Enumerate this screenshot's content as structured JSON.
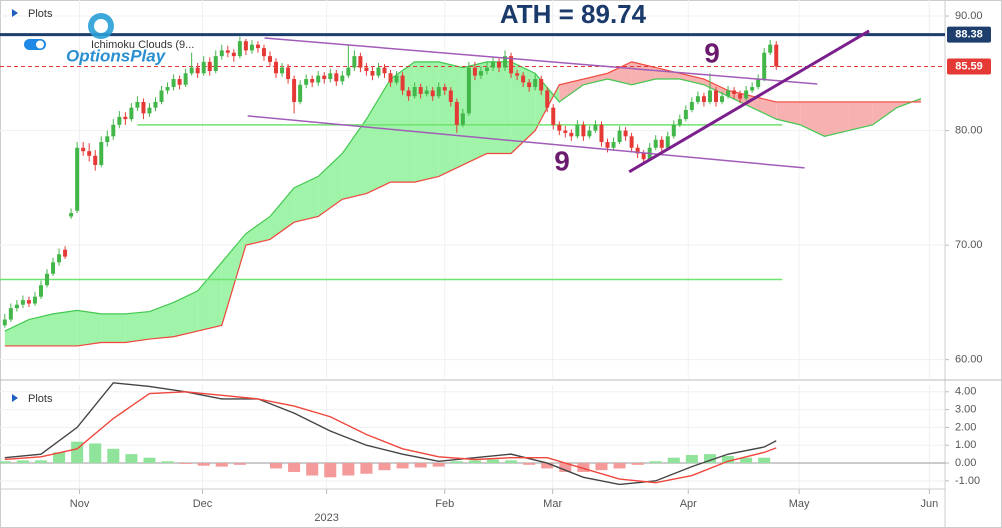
{
  "logo": "OptionsPlay",
  "chart_data": [
    {
      "type": "candlestick",
      "title": "ATH = 89.74",
      "legend_label": "Plots",
      "indicator_label": "Ichimoku Clouds (9...",
      "annotations": [
        "9",
        "9"
      ],
      "xlim": [
        -0.8,
        156
      ],
      "ylim": [
        58.4,
        91.4
      ],
      "yticks": [
        {
          "value": 60,
          "label": "60.00"
        },
        {
          "value": 70,
          "label": "70.00"
        },
        {
          "value": 80,
          "label": "80.00"
        },
        {
          "value": 90,
          "label": "90.00"
        }
      ],
      "grid": true,
      "up_color": "#43b649",
      "down_color": "#e53935",
      "candles": [
        [
          63.0,
          64.0,
          62.8,
          63.5
        ],
        [
          63.5,
          64.9,
          63.3,
          64.5
        ],
        [
          64.5,
          65.2,
          64.2,
          64.8
        ],
        [
          64.8,
          65.6,
          64.5,
          65.2
        ],
        [
          65.2,
          65.5,
          64.6,
          64.9
        ],
        [
          64.9,
          65.9,
          64.7,
          65.5
        ],
        [
          65.5,
          66.9,
          65.3,
          66.5
        ],
        [
          66.5,
          67.9,
          66.3,
          67.5
        ],
        [
          67.5,
          68.9,
          67.3,
          68.5
        ],
        [
          68.5,
          69.7,
          68.2,
          69.2
        ],
        [
          69.6,
          69.9,
          68.8,
          69.0
        ],
        [
          72.5,
          73.2,
          72.3,
          72.8
        ],
        [
          73.0,
          79.0,
          72.8,
          78.5
        ],
        [
          78.5,
          79.0,
          77.8,
          78.2
        ],
        [
          78.2,
          78.9,
          77.3,
          77.8
        ],
        [
          77.8,
          78.3,
          76.5,
          77.0
        ],
        [
          77.0,
          79.5,
          76.8,
          79.0
        ],
        [
          79.0,
          80.0,
          78.6,
          79.5
        ],
        [
          79.5,
          81.0,
          79.2,
          80.5
        ],
        [
          80.5,
          81.7,
          80.2,
          81.2
        ],
        [
          81.2,
          81.6,
          80.5,
          81.0
        ],
        [
          81.0,
          82.4,
          80.8,
          82.0
        ],
        [
          82.0,
          83.0,
          81.7,
          82.5
        ],
        [
          82.5,
          82.8,
          81.0,
          81.5
        ],
        [
          81.5,
          82.4,
          81.2,
          82.0
        ],
        [
          82.0,
          82.9,
          81.7,
          82.5
        ],
        [
          82.5,
          83.9,
          82.3,
          83.5
        ],
        [
          83.5,
          84.2,
          83.2,
          83.8
        ],
        [
          83.8,
          84.9,
          83.5,
          84.5
        ],
        [
          84.5,
          84.8,
          83.6,
          84.0
        ],
        [
          84.0,
          85.4,
          83.8,
          85.0
        ],
        [
          85.0,
          86.8,
          84.8,
          85.5
        ],
        [
          85.5,
          85.9,
          84.6,
          85.0
        ],
        [
          85.0,
          86.5,
          84.8,
          86.0
        ],
        [
          86.0,
          86.4,
          84.8,
          85.2
        ],
        [
          85.2,
          87.0,
          85.0,
          86.5
        ],
        [
          86.5,
          87.5,
          86.2,
          87.0
        ],
        [
          87.0,
          87.4,
          86.4,
          86.8
        ],
        [
          86.8,
          87.1,
          86.0,
          86.5
        ],
        [
          86.5,
          88.2,
          86.3,
          87.8
        ],
        [
          87.8,
          88.0,
          86.6,
          87.0
        ],
        [
          87.0,
          87.9,
          86.7,
          87.5
        ],
        [
          87.5,
          87.8,
          86.8,
          87.2
        ],
        [
          87.2,
          87.5,
          86.1,
          86.5
        ],
        [
          86.5,
          86.9,
          85.6,
          86.0
        ],
        [
          86.0,
          86.3,
          84.6,
          85.0
        ],
        [
          85.0,
          85.9,
          84.7,
          85.5
        ],
        [
          85.5,
          85.8,
          84.1,
          84.5
        ],
        [
          84.5,
          84.8,
          81.5,
          82.5
        ],
        [
          82.5,
          84.4,
          82.3,
          84.0
        ],
        [
          84.0,
          84.9,
          83.7,
          84.5
        ],
        [
          84.5,
          84.8,
          83.8,
          84.2
        ],
        [
          84.2,
          85.2,
          83.9,
          84.8
        ],
        [
          84.8,
          85.1,
          84.1,
          84.5
        ],
        [
          84.5,
          85.4,
          84.2,
          85.0
        ],
        [
          85.0,
          85.3,
          83.9,
          84.3
        ],
        [
          84.3,
          85.2,
          84.0,
          84.8
        ],
        [
          84.8,
          87.5,
          84.6,
          85.5
        ],
        [
          85.5,
          87.0,
          85.2,
          86.5
        ],
        [
          86.5,
          86.8,
          85.1,
          85.5
        ],
        [
          85.5,
          85.9,
          84.8,
          85.2
        ],
        [
          85.2,
          85.6,
          84.4,
          84.8
        ],
        [
          84.8,
          85.9,
          84.6,
          85.5
        ],
        [
          85.5,
          85.8,
          84.6,
          85.0
        ],
        [
          85.0,
          85.3,
          83.8,
          84.2
        ],
        [
          84.2,
          85.2,
          84.0,
          84.8
        ],
        [
          84.8,
          85.1,
          83.1,
          83.5
        ],
        [
          83.5,
          83.8,
          82.6,
          83.0
        ],
        [
          83.0,
          84.2,
          82.8,
          83.8
        ],
        [
          83.8,
          84.1,
          82.8,
          83.2
        ],
        [
          83.2,
          83.9,
          83.0,
          83.5
        ],
        [
          83.5,
          83.8,
          82.6,
          83.0
        ],
        [
          83.0,
          84.2,
          82.8,
          83.8
        ],
        [
          83.8,
          84.1,
          83.1,
          83.5
        ],
        [
          83.5,
          83.8,
          82.1,
          82.5
        ],
        [
          82.5,
          82.8,
          79.8,
          80.5
        ],
        [
          80.5,
          81.9,
          80.3,
          81.5
        ],
        [
          81.5,
          86.0,
          81.3,
          85.5
        ],
        [
          85.5,
          86.0,
          84.4,
          84.8
        ],
        [
          84.8,
          85.6,
          84.5,
          85.2
        ],
        [
          85.2,
          86.0,
          84.9,
          85.5
        ],
        [
          85.5,
          86.4,
          85.2,
          86.0
        ],
        [
          86.0,
          86.3,
          85.1,
          85.5
        ],
        [
          85.5,
          87.0,
          85.2,
          86.5
        ],
        [
          86.5,
          86.8,
          84.6,
          85.0
        ],
        [
          85.0,
          85.3,
          84.4,
          84.8
        ],
        [
          84.8,
          85.1,
          83.8,
          84.2
        ],
        [
          84.2,
          84.5,
          83.4,
          83.8
        ],
        [
          83.8,
          84.9,
          83.5,
          84.5
        ],
        [
          84.5,
          84.8,
          83.1,
          83.5
        ],
        [
          83.5,
          83.8,
          81.6,
          82.0
        ],
        [
          82.0,
          82.3,
          80.1,
          80.5
        ],
        [
          80.5,
          80.8,
          79.6,
          80.0
        ],
        [
          80.0,
          80.4,
          79.4,
          79.8
        ],
        [
          79.8,
          80.1,
          79.1,
          79.5
        ],
        [
          79.5,
          80.9,
          79.3,
          80.5
        ],
        [
          80.5,
          80.8,
          79.1,
          79.5
        ],
        [
          79.5,
          80.4,
          79.3,
          80.0
        ],
        [
          80.0,
          80.9,
          79.8,
          80.5
        ],
        [
          80.5,
          80.8,
          78.6,
          79.0
        ],
        [
          79.0,
          79.3,
          78.1,
          78.5
        ],
        [
          78.5,
          79.4,
          78.3,
          79.0
        ],
        [
          79.0,
          80.4,
          78.8,
          80.0
        ],
        [
          80.0,
          80.3,
          79.1,
          79.5
        ],
        [
          79.5,
          79.8,
          78.1,
          78.5
        ],
        [
          78.5,
          78.8,
          77.6,
          78.0
        ],
        [
          78.0,
          78.3,
          77.1,
          77.5
        ],
        [
          77.5,
          78.9,
          77.3,
          78.5
        ],
        [
          78.5,
          79.6,
          78.3,
          79.2
        ],
        [
          79.2,
          79.5,
          78.1,
          78.5
        ],
        [
          78.5,
          79.9,
          78.3,
          79.5
        ],
        [
          79.5,
          80.9,
          79.3,
          80.5
        ],
        [
          80.5,
          81.4,
          80.3,
          81.0
        ],
        [
          81.0,
          82.2,
          80.8,
          81.8
        ],
        [
          81.8,
          82.9,
          81.6,
          82.5
        ],
        [
          82.5,
          83.4,
          82.3,
          83.0
        ],
        [
          83.0,
          83.3,
          82.1,
          82.5
        ],
        [
          82.5,
          85.0,
          82.3,
          83.5
        ],
        [
          83.5,
          83.8,
          82.1,
          82.5
        ],
        [
          82.5,
          83.4,
          82.3,
          83.0
        ],
        [
          83.0,
          83.9,
          82.8,
          83.5
        ],
        [
          83.5,
          83.8,
          82.8,
          83.2
        ],
        [
          83.2,
          83.5,
          82.4,
          82.8
        ],
        [
          82.8,
          83.9,
          82.6,
          83.5
        ],
        [
          83.5,
          84.2,
          83.3,
          83.8
        ],
        [
          83.8,
          84.9,
          83.6,
          84.5
        ],
        [
          84.5,
          87.2,
          84.3,
          86.8
        ],
        [
          86.8,
          87.9,
          86.6,
          87.5
        ],
        [
          87.5,
          87.8,
          85.3,
          85.6
        ]
      ],
      "ichimoku": {
        "x": [
          0,
          4,
          8,
          12,
          16,
          20,
          24,
          28,
          32,
          36,
          40,
          44,
          48,
          52,
          56,
          60,
          64,
          68,
          72,
          76,
          80,
          84,
          88,
          92,
          96,
          100,
          104,
          108,
          112,
          116,
          120,
          124,
          128,
          132,
          136,
          140,
          144,
          148,
          152
        ],
        "span_a": [
          62.5,
          63.5,
          64.0,
          64.3,
          64.0,
          64.0,
          64.2,
          65.0,
          66.0,
          68.5,
          71.0,
          72.5,
          75.0,
          76.0,
          78.0,
          81.0,
          84.5,
          86.0,
          86.0,
          85.5,
          86.0,
          86.0,
          85.0,
          82.5,
          84.0,
          84.5,
          84.0,
          84.5,
          84.5,
          84.0,
          83.0,
          82.0,
          81.0,
          80.5,
          79.5,
          80.0,
          80.5,
          82.0,
          82.8
        ],
        "span_b": [
          61.2,
          61.2,
          61.2,
          61.2,
          61.5,
          61.5,
          61.8,
          62.0,
          62.5,
          63.0,
          70.0,
          70.5,
          72.0,
          72.5,
          74.0,
          74.5,
          75.5,
          75.5,
          76.0,
          77.0,
          78.0,
          78.0,
          80.0,
          84.0,
          84.5,
          85.0,
          86.0,
          85.5,
          85.0,
          84.5,
          83.5,
          83.0,
          82.5,
          82.5,
          82.5,
          82.5,
          82.5,
          82.5,
          82.5
        ],
        "color_a": "#43c84f",
        "color_b": "#f0463c",
        "fill_up": "#8ef29a",
        "fill_down": "#f7a3a3"
      },
      "levels": [
        {
          "value": 80.5,
          "x": [
            22,
            129
          ],
          "color": "#6fe36f"
        },
        {
          "value": 67.0,
          "x": [
            -0.8,
            129
          ],
          "color": "#6fe36f"
        }
      ],
      "trendlines": [
        {
          "x": [
            43.1,
            134.8
          ],
          "y": [
            88.08,
            84.07
          ],
          "color": "#a05cb8"
        },
        {
          "x": [
            40.3,
            132.7
          ],
          "y": [
            81.28,
            76.74
          ],
          "color": "#a05cb8"
        },
        {
          "x": [
            103.6,
            143.4
          ],
          "y": [
            76.4,
            88.7
          ],
          "color": "#7b1f8c"
        }
      ],
      "price_tags": [
        {
          "value": 88.38,
          "color": "#1e3f6e",
          "style": "solid"
        },
        {
          "value": 85.59,
          "color": "#e53935",
          "style": "dashed"
        }
      ]
    },
    {
      "type": "macd",
      "legend_label": "Plots",
      "xlim": [
        -0.8,
        156
      ],
      "ylim": [
        -1.4,
        4.38
      ],
      "yticks": [
        {
          "value": -1,
          "label": "-1.00"
        },
        {
          "value": 0,
          "label": "0.00"
        },
        {
          "value": 1,
          "label": "1.00"
        },
        {
          "value": 2,
          "label": "2.00"
        },
        {
          "value": 3,
          "label": "3.00"
        },
        {
          "value": 4,
          "label": "4.00"
        }
      ],
      "xticks": [
        {
          "value": 12.4,
          "label": "Nov"
        },
        {
          "value": 32.8,
          "label": "Dec"
        },
        {
          "value": 53.4,
          "label": "2023"
        },
        {
          "value": 73,
          "label": "Feb"
        },
        {
          "value": 90.9,
          "label": "Mar"
        },
        {
          "value": 113.4,
          "label": "Apr"
        },
        {
          "value": 131.8,
          "label": "May"
        },
        {
          "value": 153.4,
          "label": "Jun"
        }
      ],
      "x": [
        0,
        6,
        12,
        18,
        24,
        30,
        36,
        42,
        48,
        54,
        60,
        66,
        72,
        78,
        84,
        90,
        96,
        102,
        108,
        114,
        120,
        126,
        128
      ],
      "series": [
        {
          "name": "MACD",
          "color": "#444444",
          "values": [
            0.3,
            0.5,
            2.0,
            4.5,
            4.3,
            4.0,
            3.6,
            3.6,
            2.8,
            1.8,
            1.0,
            0.5,
            0.1,
            0.3,
            0.5,
            0.0,
            -0.8,
            -1.2,
            -1.0,
            -0.2,
            0.5,
            0.9,
            1.25
          ]
        },
        {
          "name": "Signal",
          "color": "#f0463c",
          "values": [
            0.2,
            0.35,
            0.8,
            2.5,
            3.9,
            4.0,
            3.8,
            3.6,
            3.2,
            2.6,
            1.6,
            0.8,
            0.35,
            0.2,
            0.3,
            0.3,
            -0.3,
            -0.9,
            -1.1,
            -0.7,
            0.1,
            0.6,
            0.85
          ]
        }
      ],
      "hist_x": [
        0,
        3,
        6,
        9,
        12,
        15,
        18,
        21,
        24,
        27,
        30,
        33,
        36,
        39,
        42,
        45,
        48,
        51,
        54,
        57,
        60,
        63,
        66,
        69,
        72,
        75,
        78,
        81,
        84,
        87,
        90,
        93,
        96,
        99,
        102,
        105,
        108,
        111,
        114,
        117,
        120,
        123,
        126
      ],
      "hist": [
        0.1,
        0.15,
        0.15,
        0.6,
        1.2,
        1.1,
        0.8,
        0.5,
        0.3,
        0.1,
        -0.05,
        -0.15,
        -0.2,
        -0.1,
        0.0,
        -0.3,
        -0.5,
        -0.7,
        -0.8,
        -0.7,
        -0.6,
        -0.4,
        -0.3,
        -0.25,
        -0.2,
        0.1,
        0.15,
        0.2,
        0.15,
        -0.1,
        -0.3,
        -0.5,
        -0.5,
        -0.4,
        -0.3,
        -0.1,
        0.1,
        0.3,
        0.45,
        0.5,
        0.4,
        0.3,
        0.3
      ],
      "hist_up": "#8fe39a",
      "hist_down": "#f59a9a"
    }
  ]
}
